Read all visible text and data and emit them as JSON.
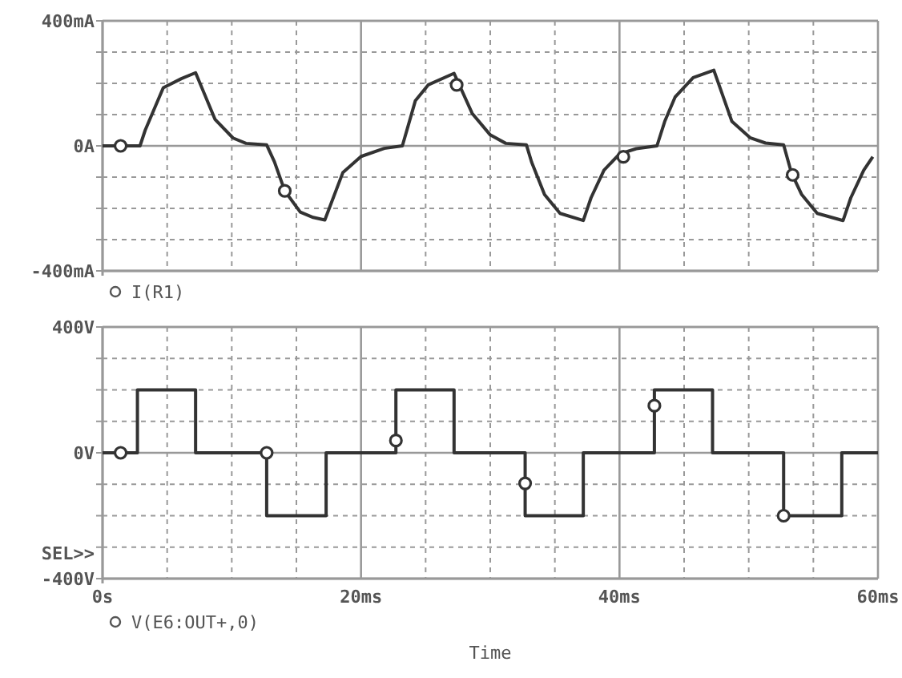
{
  "chart_data": [
    {
      "type": "line",
      "xlim": [
        0,
        60
      ],
      "xticks": [
        {
          "value": 0,
          "label": null
        },
        {
          "value": 5,
          "label": null
        },
        {
          "value": 10,
          "label": null
        },
        {
          "value": 15,
          "label": null
        },
        {
          "value": 20,
          "label": null
        },
        {
          "value": 25,
          "label": null
        },
        {
          "value": 30,
          "label": null
        },
        {
          "value": 35,
          "label": null
        },
        {
          "value": 40,
          "label": null
        },
        {
          "value": 45,
          "label": null
        },
        {
          "value": 50,
          "label": null
        },
        {
          "value": 55,
          "label": null
        },
        {
          "value": 60,
          "label": null
        }
      ],
      "ylim": [
        -400,
        400
      ],
      "yticks": [
        {
          "value": -400,
          "label": "-400mA"
        },
        {
          "value": -300,
          "label": null
        },
        {
          "value": -200,
          "label": null
        },
        {
          "value": -100,
          "label": null
        },
        {
          "value": 0,
          "label": "0A"
        },
        {
          "value": 100,
          "label": null
        },
        {
          "value": 200,
          "label": null
        },
        {
          "value": 300,
          "label": null
        },
        {
          "value": 400,
          "label": "400mA"
        }
      ],
      "tick_labels": "y",
      "grid": true,
      "legend": "bottom left",
      "series": [
        {
          "name": "I(R1)",
          "color": "#333333",
          "x": [
            0,
            2.9,
            3.3,
            4.7,
            6.1,
            7.2,
            8.7,
            10.1,
            11.1,
            12.7,
            13.3,
            14.1,
            15.3,
            16.3,
            17.2,
            18.6,
            20,
            21.8,
            23.2,
            24.2,
            25.2,
            27.2,
            28.6,
            30,
            31.2,
            32.8,
            33.2,
            34.2,
            35.4,
            37.2,
            37.8,
            38.8,
            40,
            41.3,
            42.9,
            43.5,
            44.3,
            45.7,
            47.3,
            48.7,
            50.1,
            51.3,
            52.7,
            53.3,
            54.1,
            55.3,
            57.3,
            57.9,
            58.9,
            59.6
          ],
          "values": [
            0,
            0,
            50,
            186,
            215,
            234,
            85,
            25,
            8,
            3,
            -51,
            -144,
            -212,
            -229,
            -237,
            -85,
            -34,
            -8,
            0,
            144,
            195,
            232,
            104,
            35,
            8,
            3,
            -52,
            -156,
            -216,
            -239,
            -166,
            -78,
            -26,
            -9,
            0,
            78,
            156,
            218,
            242,
            78,
            26,
            9,
            3,
            -86,
            -156,
            -216,
            -239,
            -166,
            -78,
            -35
          ]
        },
        {
          "type": "scatter",
          "color": "#333333",
          "marker": "circle",
          "x": [
            1.4,
            14.1,
            27.4,
            40.3,
            53.4
          ],
          "values": [
            0,
            -144,
            195,
            -35,
            -93
          ]
        }
      ]
    },
    {
      "type": "step",
      "xlim": [
        0,
        60
      ],
      "xticks": [
        {
          "value": 0,
          "label": "0s"
        },
        {
          "value": 5,
          "label": null
        },
        {
          "value": 10,
          "label": null
        },
        {
          "value": 15,
          "label": null
        },
        {
          "value": 20,
          "label": "20ms"
        },
        {
          "value": 25,
          "label": null
        },
        {
          "value": 30,
          "label": null
        },
        {
          "value": 35,
          "label": null
        },
        {
          "value": 40,
          "label": "40ms"
        },
        {
          "value": 45,
          "label": null
        },
        {
          "value": 50,
          "label": null
        },
        {
          "value": 55,
          "label": null
        },
        {
          "value": 60,
          "label": "60ms"
        }
      ],
      "ylim": [
        -400,
        400
      ],
      "yticks": [
        {
          "value": -400,
          "label": "-400V"
        },
        {
          "value": -300,
          "label": null
        },
        {
          "value": -200,
          "label": null
        },
        {
          "value": -100,
          "label": null
        },
        {
          "value": 0,
          "label": "0V"
        },
        {
          "value": 100,
          "label": null
        },
        {
          "value": 200,
          "label": null
        },
        {
          "value": 300,
          "label": null
        },
        {
          "value": 400,
          "label": "400V"
        }
      ],
      "grid": true,
      "legend": "bottom left",
      "xlabel": "Time",
      "annotations": [
        "SEL>>"
      ],
      "series": [
        {
          "name": "V(E6:OUT+,0)",
          "color": "#333333",
          "x": [
            0,
            2.7,
            7.2,
            12.7,
            17.3,
            22.7,
            27.2,
            32.7,
            37.2,
            42.7,
            47.2,
            52.7,
            57.2,
            60
          ],
          "values": [
            0,
            200,
            0,
            -200,
            0,
            200,
            0,
            -200,
            0,
            200,
            0,
            -200,
            0,
            0
          ]
        },
        {
          "type": "scatter",
          "color": "#333333",
          "marker": "circle",
          "x": [
            1.4,
            12.7,
            22.7,
            32.7,
            42.7,
            52.7
          ],
          "values": [
            0,
            0,
            39,
            -97,
            150,
            -200
          ]
        }
      ]
    }
  ]
}
